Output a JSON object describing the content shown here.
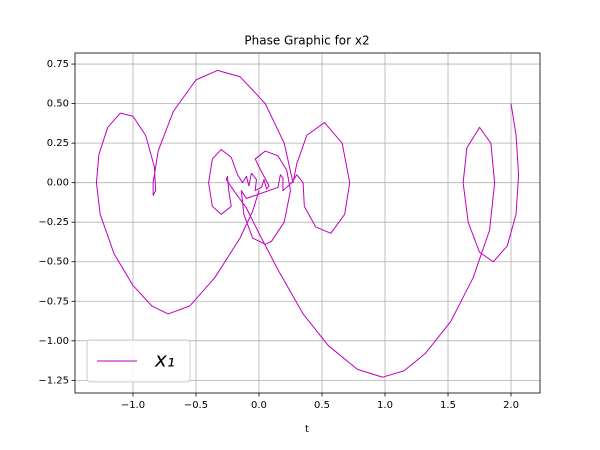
{
  "chart_data": {
    "type": "line",
    "title": "Phase Graphic for x2",
    "x_label": "t",
    "x": [
      2.0,
      2.04,
      2.06,
      2.04,
      1.97,
      1.86,
      1.75,
      1.66,
      1.62,
      1.65,
      1.75,
      1.84,
      1.87,
      1.83,
      1.7,
      1.52,
      1.32,
      1.15,
      0.98,
      0.78,
      0.55,
      0.35,
      0.15,
      0.0,
      -0.1,
      -0.2,
      -0.26,
      -0.25,
      -0.24,
      -0.22,
      -0.3,
      -0.37,
      -0.4,
      -0.37,
      -0.3,
      -0.22,
      -0.17,
      -0.13,
      -0.1,
      -0.08,
      -0.06,
      -0.02,
      -0.03,
      0.02,
      0.04,
      0.06,
      0.08,
      0.0,
      -0.03,
      0.05,
      0.15,
      0.22,
      0.25,
      0.2,
      0.1,
      0.05,
      -0.05,
      -0.12,
      -0.14,
      -0.1,
      0.15,
      0.17,
      0.19,
      0.19,
      0.26,
      0.3,
      0.35,
      0.36,
      0.45,
      0.57,
      0.68,
      0.72,
      0.66,
      0.52,
      0.38,
      0.3,
      0.27,
      0.2,
      0.05,
      -0.15,
      -0.33,
      -0.5,
      -0.68,
      -0.8,
      -0.84,
      -0.84,
      -0.82,
      -0.83,
      -0.9,
      -1.0,
      -1.1,
      -1.2,
      -1.27,
      -1.29,
      -1.26,
      -1.15,
      -1.0,
      -0.85,
      -0.72,
      -0.55,
      -0.35,
      -0.15,
      -0.05,
      0.0
    ],
    "series": [
      {
        "name": "x₁",
        "color": "#bf00bf",
        "values": [
          0.5,
          0.3,
          0.05,
          -0.2,
          -0.4,
          -0.5,
          -0.44,
          -0.25,
          0.0,
          0.22,
          0.35,
          0.25,
          0.0,
          -0.3,
          -0.6,
          -0.88,
          -1.08,
          -1.19,
          -1.23,
          -1.18,
          -1.03,
          -0.83,
          -0.55,
          -0.32,
          -0.16,
          -0.05,
          0.02,
          0.04,
          -0.05,
          -0.15,
          -0.2,
          -0.15,
          0.0,
          0.15,
          0.21,
          0.16,
          0.05,
          0.0,
          0.04,
          -0.02,
          0.06,
          0.02,
          -0.05,
          -0.03,
          0.02,
          -0.04,
          -0.02,
          0.1,
          0.15,
          0.2,
          0.17,
          0.08,
          -0.05,
          -0.25,
          -0.37,
          -0.39,
          -0.35,
          -0.2,
          -0.05,
          -0.1,
          -0.03,
          0.05,
          0.03,
          -0.05,
          0.0,
          0.05,
          0.0,
          -0.15,
          -0.28,
          -0.32,
          -0.2,
          0.0,
          0.25,
          0.38,
          0.3,
          0.12,
          0.0,
          0.25,
          0.5,
          0.67,
          0.71,
          0.65,
          0.45,
          0.2,
          0.0,
          -0.08,
          -0.05,
          0.1,
          0.3,
          0.42,
          0.44,
          0.35,
          0.18,
          0.0,
          -0.2,
          -0.45,
          -0.65,
          -0.78,
          -0.83,
          -0.78,
          -0.6,
          -0.35,
          -0.18,
          -0.05
        ]
      }
    ],
    "xlim": [
      -1.46,
      2.23
    ],
    "xticks": [
      {
        "value": -1.0,
        "label": "−1.0"
      },
      {
        "value": -0.5,
        "label": "−0.5"
      },
      {
        "value": 0.0,
        "label": "0.0"
      },
      0.5,
      {
        "value": 1.0,
        "label": "1.0"
      },
      1.5,
      {
        "value": 2.0,
        "label": "2.0"
      }
    ],
    "ylim": [
      -1.33,
      0.82
    ],
    "yticks": [
      {
        "value": -1.25,
        "label": "−1.25"
      },
      {
        "value": -1.0,
        "label": "−1.00"
      },
      {
        "value": -0.75,
        "label": "−0.75"
      },
      {
        "value": -0.5,
        "label": "−0.50"
      },
      {
        "value": -0.25,
        "label": "−0.25"
      },
      {
        "value": 0.0,
        "label": "0.00"
      },
      0.25,
      {
        "value": 0.5,
        "label": "0.50"
      },
      0.75
    ],
    "grid": true,
    "legend": "lower left"
  }
}
